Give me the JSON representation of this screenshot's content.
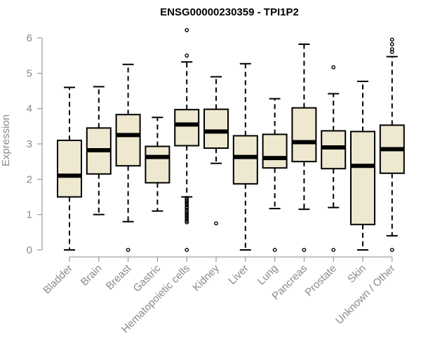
{
  "chart_data": {
    "type": "box",
    "title": "ENSG00000230359 - TPI1P2",
    "xlabel": "",
    "ylabel": "Expression",
    "ylim": [
      0,
      6
    ],
    "yticks": [
      0,
      1,
      2,
      3,
      4,
      5,
      6
    ],
    "box_fill": "#ede8cf",
    "axis_color": "#8a8a8a",
    "categories": [
      "Bladder",
      "Brain",
      "Breast",
      "Gastric",
      "Hematopoietic cells",
      "Kidney",
      "Liver",
      "Lung",
      "Pancreas",
      "Prostate",
      "Skin",
      "Unknown / Other"
    ],
    "boxes": [
      {
        "whisker_low": 0.0,
        "q1": 1.5,
        "median": 2.1,
        "q3": 3.1,
        "whisker_high": 4.6,
        "outliers": []
      },
      {
        "whisker_low": 1.0,
        "q1": 2.15,
        "median": 2.82,
        "q3": 3.45,
        "whisker_high": 4.62,
        "outliers": []
      },
      {
        "whisker_low": 0.8,
        "q1": 2.38,
        "median": 3.25,
        "q3": 3.83,
        "whisker_high": 5.25,
        "outliers": [
          0.0
        ]
      },
      {
        "whisker_low": 1.1,
        "q1": 1.9,
        "median": 2.63,
        "q3": 2.93,
        "whisker_high": 3.75,
        "outliers": []
      },
      {
        "whisker_low": 1.5,
        "q1": 2.95,
        "median": 3.55,
        "q3": 3.97,
        "whisker_high": 5.32,
        "outliers": [
          0.0,
          0.78,
          0.82,
          0.88,
          0.93,
          0.98,
          1.03,
          1.08,
          1.12,
          1.18,
          1.22,
          1.28,
          1.33,
          1.38,
          1.43,
          1.47,
          5.5,
          6.22
        ]
      },
      {
        "whisker_low": 2.45,
        "q1": 2.88,
        "median": 3.35,
        "q3": 3.98,
        "whisker_high": 4.9,
        "outliers": [
          0.75
        ]
      },
      {
        "whisker_low": 0.0,
        "q1": 1.87,
        "median": 2.63,
        "q3": 3.23,
        "whisker_high": 5.27,
        "outliers": []
      },
      {
        "whisker_low": 1.17,
        "q1": 2.32,
        "median": 2.6,
        "q3": 3.27,
        "whisker_high": 4.28,
        "outliers": [
          0.0
        ]
      },
      {
        "whisker_low": 1.15,
        "q1": 2.5,
        "median": 3.05,
        "q3": 4.02,
        "whisker_high": 5.82,
        "outliers": [
          0.0
        ]
      },
      {
        "whisker_low": 1.2,
        "q1": 2.3,
        "median": 2.9,
        "q3": 3.37,
        "whisker_high": 4.42,
        "outliers": [
          0.0,
          5.17
        ]
      },
      {
        "whisker_low": 0.0,
        "q1": 0.72,
        "median": 2.38,
        "q3": 3.35,
        "whisker_high": 4.77,
        "outliers": []
      },
      {
        "whisker_low": 0.4,
        "q1": 2.17,
        "median": 2.85,
        "q3": 3.53,
        "whisker_high": 5.47,
        "outliers": [
          0.0,
          5.6,
          5.68,
          5.82,
          5.95
        ]
      }
    ]
  }
}
